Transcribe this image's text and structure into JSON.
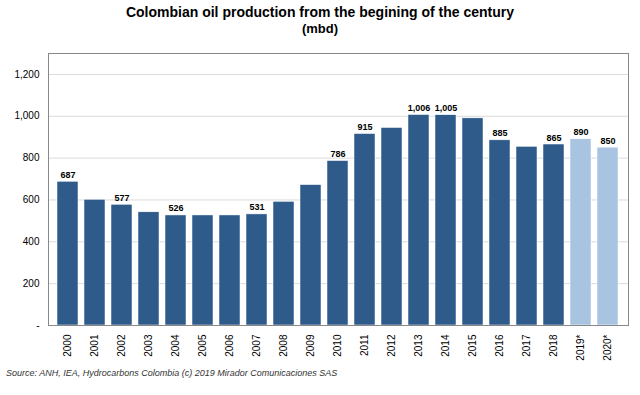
{
  "chart_data": {
    "type": "bar",
    "title": "Colombian oil production from the begining of the century",
    "subtitle": "(mbd)",
    "caption": "Source: ANH, IEA,  Hydrocarbons Colombia (c) 2019 Mirador Comunicaciones SAS",
    "categories": [
      "2000",
      "2001",
      "2002",
      "2003",
      "2004",
      "2005",
      "2006",
      "2007",
      "2008",
      "2009",
      "2010",
      "2011",
      "2012",
      "2013",
      "2014",
      "2015",
      "2016",
      "2017",
      "2018",
      "2019*",
      "2020*"
    ],
    "values": [
      687,
      601,
      577,
      541,
      526,
      526,
      526,
      531,
      591,
      671,
      786,
      915,
      944,
      1006,
      1005,
      990,
      885,
      854,
      865,
      890,
      850
    ],
    "value_labels": [
      "687",
      null,
      "577",
      null,
      "526",
      null,
      null,
      "531",
      null,
      null,
      "786",
      "915",
      null,
      "1,006",
      "1,005",
      null,
      "885",
      null,
      "865",
      "890",
      "850"
    ],
    "colors": [
      "#2E5B8A",
      "#2E5B8A",
      "#2E5B8A",
      "#2E5B8A",
      "#2E5B8A",
      "#2E5B8A",
      "#2E5B8A",
      "#2E5B8A",
      "#2E5B8A",
      "#2E5B8A",
      "#2E5B8A",
      "#2E5B8A",
      "#2E5B8A",
      "#2E5B8A",
      "#2E5B8A",
      "#2E5B8A",
      "#2E5B8A",
      "#2E5B8A",
      "#2E5B8A",
      "#A8C4E0",
      "#A8C4E0"
    ],
    "data_labels": true,
    "ylim": [
      0,
      1300
    ],
    "yticks": [
      {
        "value": 0,
        "label": "-"
      },
      200,
      400,
      600,
      800,
      {
        "value": 1000,
        "label": "1,000"
      },
      {
        "value": 1200,
        "label": "1,200"
      }
    ],
    "grid": true
  }
}
